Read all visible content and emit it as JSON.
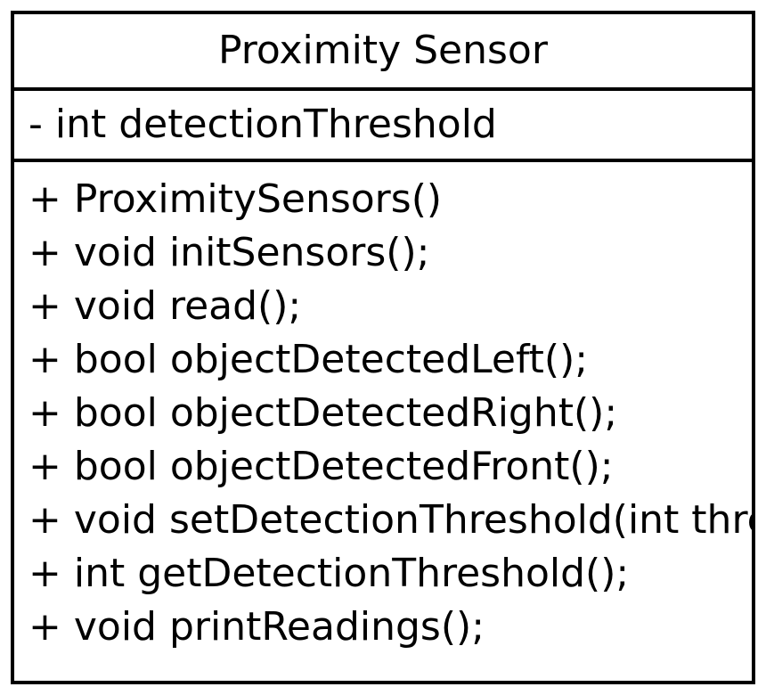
{
  "class_box": {
    "title": "Proximity Sensor",
    "attributes": [
      "- int detectionThreshold"
    ],
    "methods": [
      "+ ProximitySensors()",
      "+ void initSensors();",
      "+ void read();",
      "+ bool objectDetectedLeft();",
      "+ bool objectDetectedRight();",
      "+ bool objectDetectedFront();",
      "+ void setDetectionThreshold(int thre",
      "+ int getDetectionThreshold();",
      "+ void printReadings();"
    ],
    "colors": {
      "border": "#000000",
      "text": "#000000",
      "background": "#ffffff"
    }
  }
}
